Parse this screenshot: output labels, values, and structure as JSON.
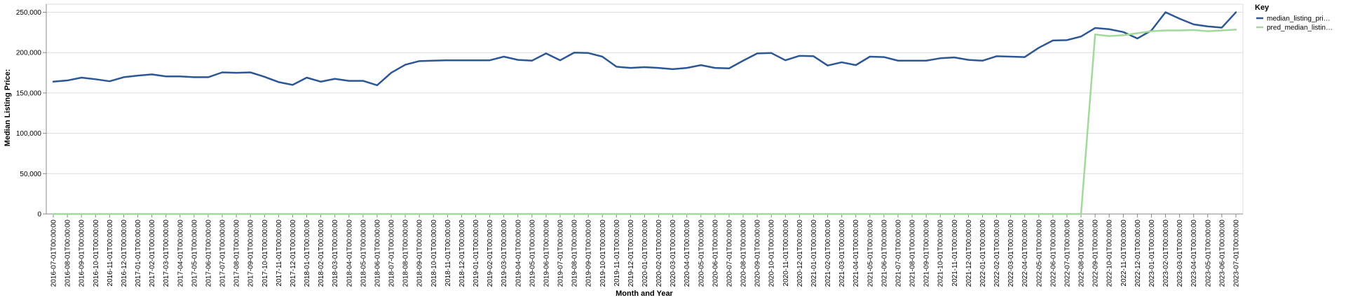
{
  "chart_data": {
    "type": "line",
    "title": "",
    "xlabel": "Month and Year",
    "ylabel": "Median Listing Price:",
    "ylim": [
      0,
      260000
    ],
    "yticks": [
      0,
      50000,
      100000,
      150000,
      200000,
      250000
    ],
    "ytick_labels": [
      "0",
      "50,000",
      "100,000",
      "150,000",
      "200,000",
      "250,000"
    ],
    "grid": true,
    "legend": {
      "title": "Key",
      "placement": "right"
    },
    "x": [
      "2016-07-01T00:00:00",
      "2016-08-01T00:00:00",
      "2016-09-01T00:00:00",
      "2016-10-01T00:00:00",
      "2016-11-01T00:00:00",
      "2016-12-01T00:00:00",
      "2017-01-01T00:00:00",
      "2017-02-01T00:00:00",
      "2017-03-01T00:00:00",
      "2017-04-01T00:00:00",
      "2017-05-01T00:00:00",
      "2017-06-01T00:00:00",
      "2017-07-01T00:00:00",
      "2017-08-01T00:00:00",
      "2017-09-01T00:00:00",
      "2017-10-01T00:00:00",
      "2017-11-01T00:00:00",
      "2017-12-01T00:00:00",
      "2018-01-01T00:00:00",
      "2018-02-01T00:00:00",
      "2018-03-01T00:00:00",
      "2018-04-01T00:00:00",
      "2018-05-01T00:00:00",
      "2018-06-01T00:00:00",
      "2018-07-01T00:00:00",
      "2018-08-01T00:00:00",
      "2018-09-01T00:00:00",
      "2018-10-01T00:00:00",
      "2018-11-01T00:00:00",
      "2018-12-01T00:00:00",
      "2019-01-01T00:00:00",
      "2019-02-01T00:00:00",
      "2019-03-01T00:00:00",
      "2019-04-01T00:00:00",
      "2019-05-01T00:00:00",
      "2019-06-01T00:00:00",
      "2019-07-01T00:00:00",
      "2019-08-01T00:00:00",
      "2019-09-01T00:00:00",
      "2019-10-01T00:00:00",
      "2019-11-01T00:00:00",
      "2019-12-01T00:00:00",
      "2020-01-01T00:00:00",
      "2020-02-01T00:00:00",
      "2020-03-01T00:00:00",
      "2020-04-01T00:00:00",
      "2020-05-01T00:00:00",
      "2020-06-01T00:00:00",
      "2020-07-01T00:00:00",
      "2020-08-01T00:00:00",
      "2020-09-01T00:00:00",
      "2020-10-01T00:00:00",
      "2020-11-01T00:00:00",
      "2020-12-01T00:00:00",
      "2021-01-01T00:00:00",
      "2021-02-01T00:00:00",
      "2021-03-01T00:00:00",
      "2021-04-01T00:00:00",
      "2021-05-01T00:00:00",
      "2021-06-01T00:00:00",
      "2021-07-01T00:00:00",
      "2021-08-01T00:00:00",
      "2021-09-01T00:00:00",
      "2021-10-01T00:00:00",
      "2021-11-01T00:00:00",
      "2021-12-01T00:00:00",
      "2022-01-01T00:00:00",
      "2022-02-01T00:00:00",
      "2022-03-01T00:00:00",
      "2022-04-01T00:00:00",
      "2022-05-01T00:00:00",
      "2022-06-01T00:00:00",
      "2022-07-01T00:00:00",
      "2022-08-01T00:00:00",
      "2022-09-01T00:00:00",
      "2022-10-01T00:00:00",
      "2022-11-01T00:00:00",
      "2022-12-01T00:00:00",
      "2023-01-01T00:00:00",
      "2023-02-01T00:00:00",
      "2023-03-01T00:00:00",
      "2023-04-01T00:00:00",
      "2023-05-01T00:00:00",
      "2023-06-01T00:00:00",
      "2023-07-01T00:00:00"
    ],
    "series": [
      {
        "name": "median_listing_pri…",
        "color": "#2c5694",
        "values": [
          164000,
          165500,
          169000,
          167000,
          164500,
          169500,
          171500,
          173000,
          170500,
          170500,
          169500,
          169500,
          175500,
          175000,
          175500,
          170000,
          163500,
          160000,
          169000,
          164000,
          167500,
          165000,
          165000,
          159500,
          175000,
          185000,
          189500,
          190000,
          190500,
          190500,
          190500,
          190500,
          195000,
          191000,
          190000,
          199000,
          190500,
          200000,
          199500,
          195000,
          182500,
          181000,
          182000,
          181000,
          179500,
          181000,
          184500,
          181000,
          180500,
          190000,
          199000,
          199500,
          190500,
          196000,
          195500,
          184000,
          188000,
          184500,
          195000,
          194500,
          190000,
          190000,
          190000,
          193000,
          194000,
          191000,
          190000,
          195500,
          195000,
          194500,
          206000,
          215000,
          215500,
          220000,
          230500,
          229000,
          225500,
          217500,
          227500,
          250000,
          242000,
          235000,
          232500,
          231000,
          250000
        ]
      },
      {
        "name": "pred_median_listin…",
        "color": "#a1d99b",
        "values": [
          0,
          0,
          0,
          0,
          0,
          0,
          0,
          0,
          0,
          0,
          0,
          0,
          0,
          0,
          0,
          0,
          0,
          0,
          0,
          0,
          0,
          0,
          0,
          0,
          0,
          0,
          0,
          0,
          0,
          0,
          0,
          0,
          0,
          0,
          0,
          0,
          0,
          0,
          0,
          0,
          0,
          0,
          0,
          0,
          0,
          0,
          0,
          0,
          0,
          0,
          0,
          0,
          0,
          0,
          0,
          0,
          0,
          0,
          0,
          0,
          0,
          0,
          0,
          0,
          0,
          0,
          0,
          0,
          0,
          0,
          0,
          0,
          0,
          0,
          222500,
          220500,
          221500,
          224000,
          226500,
          227500,
          227500,
          228000,
          226500,
          227500,
          228500
        ]
      }
    ]
  }
}
